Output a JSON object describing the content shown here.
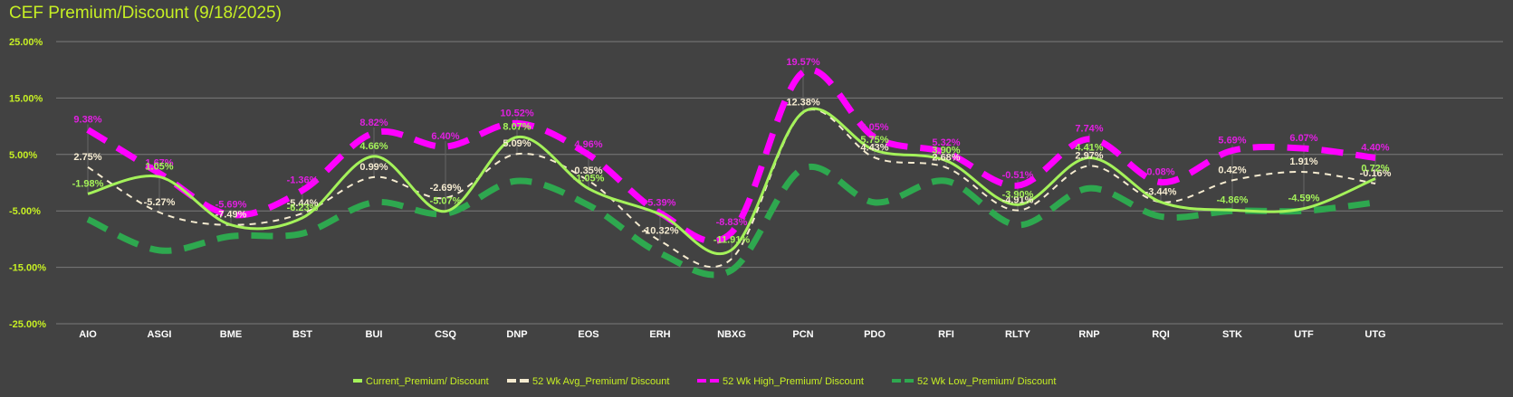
{
  "chart_data": {
    "type": "line",
    "title": "CEF Premium/Discount (9/18/2025)",
    "xlabel": "",
    "ylabel": "",
    "ylim": [
      -25,
      25
    ],
    "yticks": [
      "25.00%",
      "15.00%",
      "5.00%",
      "-5.00%",
      "-15.00%",
      "-25.00%"
    ],
    "ytick_values": [
      25,
      15,
      5,
      -5,
      -15,
      -25
    ],
    "grid": true,
    "legend_position": "bottom",
    "categories": [
      "AIO",
      "ASGI",
      "BME",
      "BST",
      "BUI",
      "CSQ",
      "DNP",
      "EOS",
      "ERH",
      "NBXG",
      "PCN",
      "PDO",
      "RFI",
      "RLTY",
      "RNP",
      "RQI",
      "STK",
      "UTF",
      "UTG"
    ],
    "series": [
      {
        "name": "Current_Premium/ Discount",
        "color": "#a4f25a",
        "style": "solid",
        "values": [
          -1.98,
          1.05,
          -7.49,
          -6.23,
          4.66,
          -5.07,
          8.07,
          -1.05,
          -5.6,
          -11.91,
          12.5,
          5.75,
          3.9,
          -3.9,
          4.41,
          -3.44,
          -4.86,
          -4.59,
          0.72
        ],
        "labels": [
          "-1.98%",
          "1.05%",
          "",
          "-6.23%",
          "4.66%",
          "-5.07%",
          "8.07%",
          "-1.05%",
          "",
          "-11.91%",
          "",
          "5.75%",
          "3.90%",
          "-3.90%",
          "4.41%",
          "",
          "-4.86%",
          "-4.59%",
          "0.72%"
        ]
      },
      {
        "name": "52 Wk Avg_Premium/ Discount",
        "color": "#f5ebd0",
        "style": "dash",
        "values": [
          2.75,
          -5.27,
          -7.49,
          -5.44,
          0.99,
          -2.69,
          5.09,
          0.35,
          -10.32,
          -13.5,
          12.38,
          4.43,
          2.68,
          -4.91,
          2.97,
          -3.44,
          0.42,
          1.91,
          -0.16
        ],
        "labels": [
          "2.75%",
          "-5.27%",
          "-7.49%",
          "-5.44%",
          "0.99%",
          "-2.69%",
          "5.09%",
          "0.35%",
          "-10.32%",
          "",
          "12.38%",
          "4.43%",
          "2.68%",
          "-4.91%",
          "2.97%",
          "-3.44%",
          "0.42%",
          "1.91%",
          "-0.16%"
        ]
      },
      {
        "name": "52 Wk High_Premium/ Discount",
        "color": "#ff00ff",
        "style": "dash",
        "values": [
          9.38,
          1.67,
          -5.69,
          -1.36,
          8.82,
          6.4,
          10.52,
          4.96,
          -5.39,
          -8.83,
          19.57,
          8.05,
          5.32,
          -0.51,
          7.74,
          0.08,
          5.69,
          6.07,
          4.4
        ],
        "labels": [
          "9.38%",
          "1.67%",
          "-5.69%",
          "-1.36%",
          "8.82%",
          "6.40%",
          "10.52%",
          "4.96%",
          "-5.39%",
          "-8.83%",
          "19.57%",
          "8.05%",
          "5.32%",
          "-0.51%",
          "7.74%",
          "0.08%",
          "5.69%",
          "6.07%",
          "4.40%"
        ]
      },
      {
        "name": "52 Wk Low_Premium/ Discount",
        "color": "#2ea84f",
        "style": "dash",
        "values": [
          -6.5,
          -12.0,
          -9.5,
          -9.0,
          -3.5,
          -5.5,
          0.3,
          -4.0,
          -12.5,
          -15.5,
          2.5,
          -3.5,
          0.3,
          -7.5,
          -1.0,
          -6.0,
          -5.0,
          -5.0,
          -3.5
        ],
        "labels": []
      }
    ]
  }
}
